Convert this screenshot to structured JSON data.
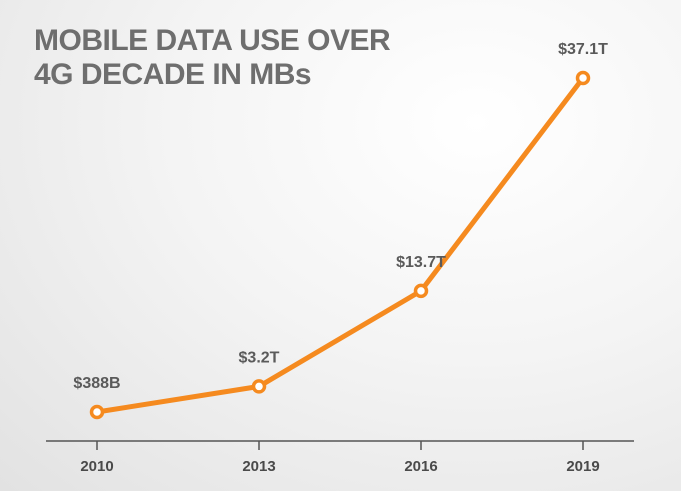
{
  "title": {
    "line1": "MOBILE DATA USE OVER",
    "line2": "4G DECADE IN MBs"
  },
  "colors": {
    "line": "#f58a1f",
    "marker_fill": "#ffffff",
    "axis": "#555555",
    "title": "#6e6e6e"
  },
  "chart_data": {
    "type": "line",
    "title": "MOBILE DATA USE OVER 4G DECADE IN MBs",
    "xlabel": "",
    "ylabel": "",
    "categories": [
      "2010",
      "2013",
      "2016",
      "2019"
    ],
    "series": [
      {
        "values": [
          0.388,
          3.2,
          13.7,
          37.1
        ],
        "labels": [
          "$388B",
          "$3.2T",
          "$13.7T",
          "$37.1T"
        ]
      }
    ],
    "grid": false,
    "legend": "none"
  }
}
